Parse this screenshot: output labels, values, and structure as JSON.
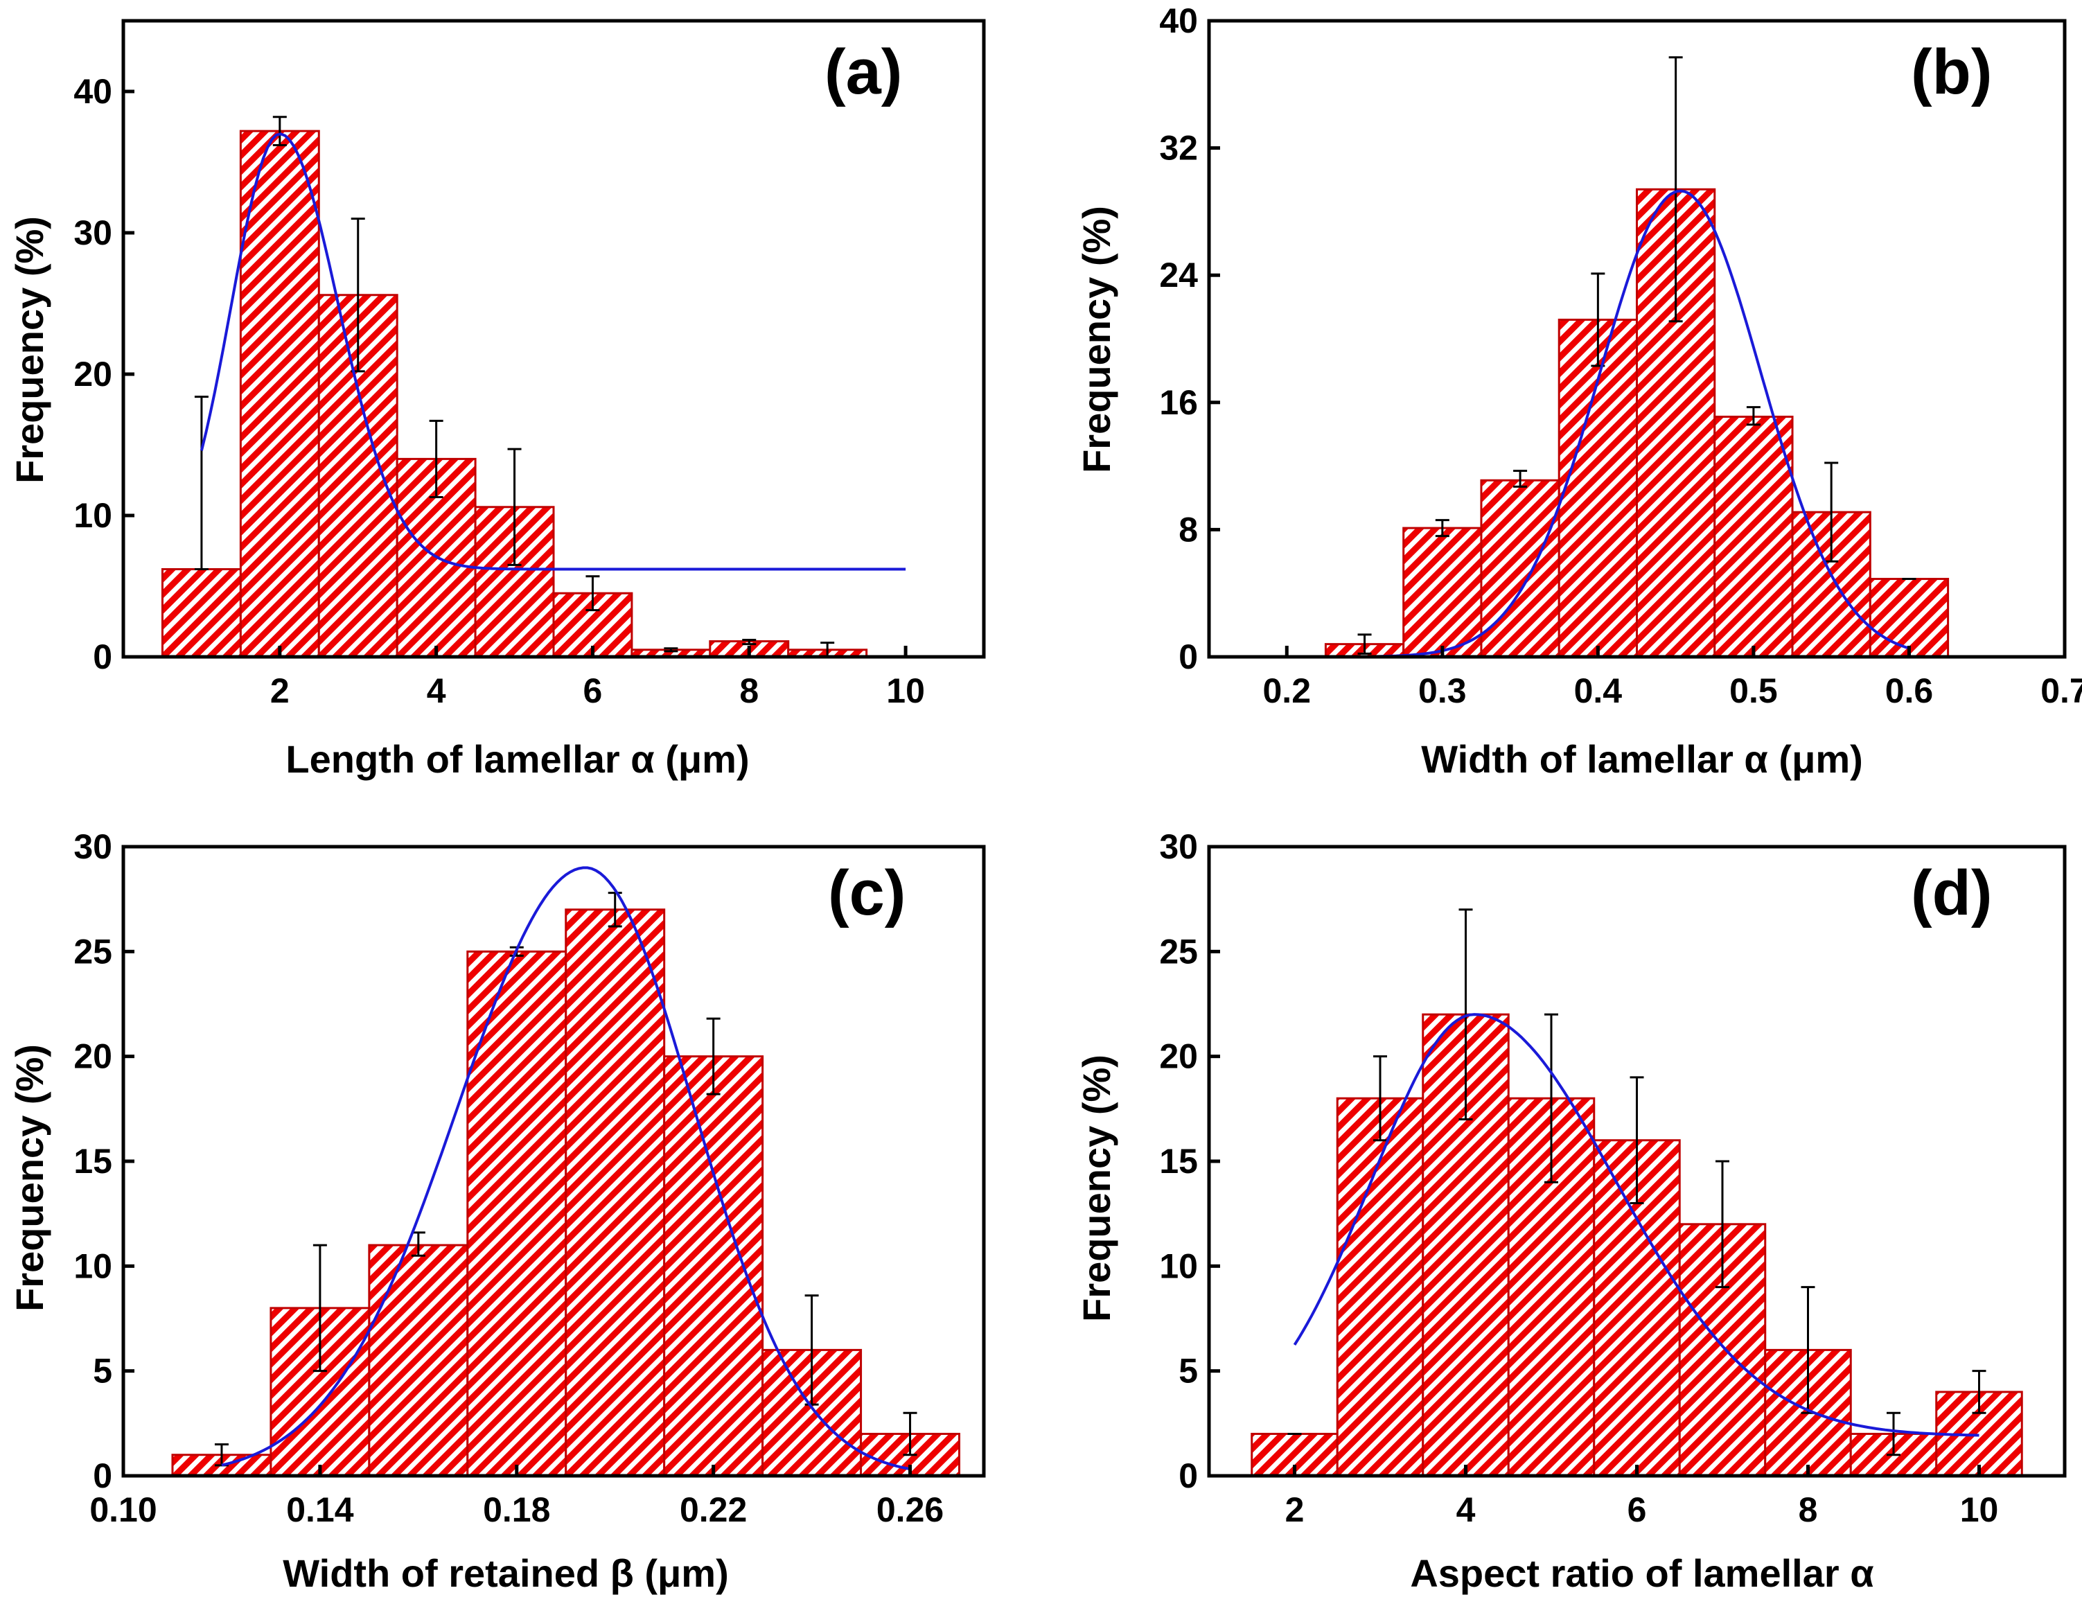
{
  "hatch_color": "#ee0000",
  "fit_color": "#1a1ad8",
  "chart_data": [
    {
      "panel": "(a)",
      "type": "bar",
      "title": "",
      "xlabel": "Length of lamellar α (μm)",
      "ylabel": "Frequency (%)",
      "xlim": [
        0,
        11
      ],
      "ylim": [
        0,
        45
      ],
      "xticks": [
        2,
        4,
        6,
        8,
        10
      ],
      "xtick_labels": [
        "2",
        "4",
        "6",
        "8",
        "10"
      ],
      "yticks": [
        0,
        10,
        20,
        30,
        40
      ],
      "ytick_labels": [
        "0",
        "10",
        "20",
        "30",
        "40"
      ],
      "bar_width": 1,
      "bars": [
        {
          "x": 1,
          "value": 6.2,
          "err_low": 6.2,
          "err_high": 18.4
        },
        {
          "x": 2,
          "value": 37.2,
          "err_low": 36.2,
          "err_high": 38.2
        },
        {
          "x": 3,
          "value": 25.6,
          "err_low": 20.2,
          "err_high": 31.0
        },
        {
          "x": 4,
          "value": 14.0,
          "err_low": 11.3,
          "err_high": 16.7
        },
        {
          "x": 5,
          "value": 10.6,
          "err_low": 6.5,
          "err_high": 14.7
        },
        {
          "x": 6,
          "value": 4.5,
          "err_low": 3.3,
          "err_high": 5.7
        },
        {
          "x": 7,
          "value": 0.5,
          "err_low": 0.4,
          "err_high": 0.6
        },
        {
          "x": 8,
          "value": 1.1,
          "err_low": 0.9,
          "err_high": 1.2
        },
        {
          "x": 9,
          "value": 0.5,
          "err_low": 0.0,
          "err_high": 1.0
        }
      ],
      "fit": {
        "baseline": 6.2,
        "amplitude": 30.8,
        "center": 2.0,
        "sigma": 0.62,
        "sigma_right": 0.75,
        "x_range": [
          1,
          10
        ]
      }
    },
    {
      "panel": "(b)",
      "type": "bar",
      "title": "",
      "xlabel": "Width of lamellar α (μm)",
      "ylabel": "Frequency (%)",
      "xlim": [
        0.15,
        0.7
      ],
      "ylim": [
        0,
        40
      ],
      "xticks": [
        0.2,
        0.3,
        0.4,
        0.5,
        0.6,
        0.7
      ],
      "xtick_labels": [
        "0.2",
        "0.3",
        "0.4",
        "0.5",
        "0.6",
        "0.7"
      ],
      "yticks": [
        0,
        8,
        16,
        24,
        32,
        40
      ],
      "ytick_labels": [
        "0",
        "8",
        "16",
        "24",
        "32",
        "40"
      ],
      "bar_width": 0.05,
      "bars": [
        {
          "x": 0.25,
          "value": 0.8,
          "err_low": 0.2,
          "err_high": 1.4
        },
        {
          "x": 0.3,
          "value": 8.1,
          "err_low": 7.6,
          "err_high": 8.6
        },
        {
          "x": 0.35,
          "value": 11.1,
          "err_low": 10.7,
          "err_high": 11.7
        },
        {
          "x": 0.4,
          "value": 21.2,
          "err_low": 18.3,
          "err_high": 24.1
        },
        {
          "x": 0.45,
          "value": 29.4,
          "err_low": 21.1,
          "err_high": 37.7
        },
        {
          "x": 0.5,
          "value": 15.1,
          "err_low": 14.6,
          "err_high": 15.7
        },
        {
          "x": 0.55,
          "value": 9.1,
          "err_low": 6.0,
          "err_high": 12.2
        },
        {
          "x": 0.6,
          "value": 4.9,
          "err_low": 4.9,
          "err_high": 4.9
        }
      ],
      "fit": {
        "baseline": 0,
        "amplitude": 29.3,
        "center": 0.453,
        "sigma": 0.052,
        "sigma_right": 0.052,
        "x_range": [
          0.25,
          0.6
        ]
      }
    },
    {
      "panel": "(c)",
      "type": "bar",
      "title": "",
      "xlabel": "Width of retained β (μm)",
      "ylabel": "Frequency (%)",
      "xlim": [
        0.1,
        0.275
      ],
      "ylim": [
        0,
        30
      ],
      "xticks": [
        0.1,
        0.14,
        0.18,
        0.22,
        0.26
      ],
      "xtick_labels": [
        "0.10",
        "0.14",
        "0.18",
        "0.22",
        "0.26"
      ],
      "yticks": [
        0,
        5,
        10,
        15,
        20,
        25,
        30
      ],
      "ytick_labels": [
        "0",
        "5",
        "10",
        "15",
        "20",
        "25",
        "30"
      ],
      "bar_width": 0.02,
      "bars": [
        {
          "x": 0.12,
          "value": 1.0,
          "err_low": 0.5,
          "err_high": 1.5
        },
        {
          "x": 0.14,
          "value": 8.0,
          "err_low": 5.0,
          "err_high": 11.0
        },
        {
          "x": 0.16,
          "value": 11.0,
          "err_low": 10.5,
          "err_high": 11.6
        },
        {
          "x": 0.18,
          "value": 25.0,
          "err_low": 24.8,
          "err_high": 25.2
        },
        {
          "x": 0.2,
          "value": 27.0,
          "err_low": 26.2,
          "err_high": 27.8
        },
        {
          "x": 0.22,
          "value": 20.0,
          "err_low": 18.2,
          "err_high": 21.8
        },
        {
          "x": 0.24,
          "value": 6.0,
          "err_low": 3.4,
          "err_high": 8.6
        },
        {
          "x": 0.26,
          "value": 2.0,
          "err_low": 1.0,
          "err_high": 3.0
        }
      ],
      "fit": {
        "baseline": 0,
        "amplitude": 29.0,
        "center": 0.194,
        "sigma": 0.026,
        "sigma_right": 0.022,
        "x_range": [
          0.12,
          0.26
        ]
      }
    },
    {
      "panel": "(d)",
      "type": "bar",
      "title": "",
      "xlabel": "Aspect ratio of lamellar α",
      "ylabel": "Frequency (%)",
      "xlim": [
        1,
        11
      ],
      "ylim": [
        0,
        30
      ],
      "xticks": [
        2,
        4,
        6,
        8,
        10
      ],
      "xtick_labels": [
        "2",
        "4",
        "6",
        "8",
        "10"
      ],
      "yticks": [
        0,
        5,
        10,
        15,
        20,
        25,
        30
      ],
      "ytick_labels": [
        "0",
        "5",
        "10",
        "15",
        "20",
        "25",
        "30"
      ],
      "bar_width": 1,
      "bars": [
        {
          "x": 2,
          "value": 2.0,
          "err_low": 2.0,
          "err_high": 2.0
        },
        {
          "x": 3,
          "value": 18.0,
          "err_low": 16.0,
          "err_high": 20.0
        },
        {
          "x": 4,
          "value": 22.0,
          "err_low": 17.0,
          "err_high": 27.0
        },
        {
          "x": 5,
          "value": 18.0,
          "err_low": 14.0,
          "err_high": 22.0
        },
        {
          "x": 6,
          "value": 16.0,
          "err_low": 13.0,
          "err_high": 19.0
        },
        {
          "x": 7,
          "value": 12.0,
          "err_low": 9.0,
          "err_high": 15.0
        },
        {
          "x": 8,
          "value": 6.0,
          "err_low": 3.0,
          "err_high": 9.0
        },
        {
          "x": 9,
          "value": 2.0,
          "err_low": 1.0,
          "err_high": 3.0
        },
        {
          "x": 10,
          "value": 4.0,
          "err_low": 3.0,
          "err_high": 5.0
        }
      ],
      "fit": {
        "baseline": 1.9,
        "amplitude": 20.1,
        "center": 4.1,
        "sigma": 1.2,
        "sigma_right": 1.65,
        "x_range": [
          2,
          10
        ]
      }
    }
  ]
}
